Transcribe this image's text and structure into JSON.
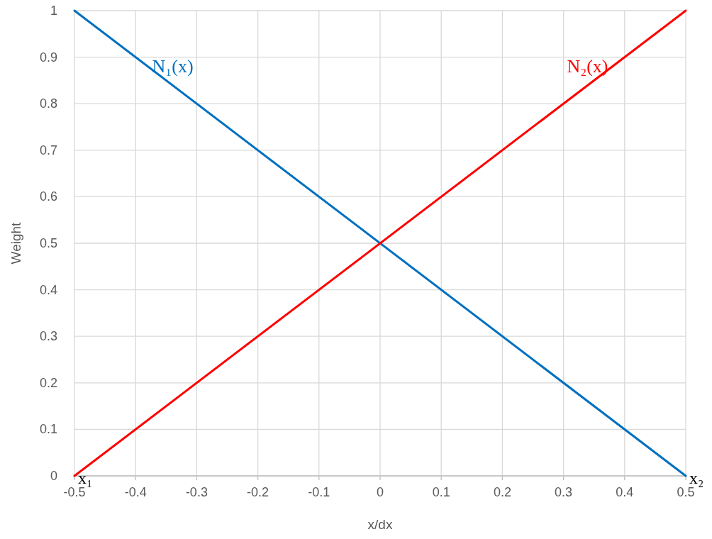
{
  "chart_data": {
    "type": "line",
    "xlabel": "x/dx",
    "ylabel": "Weight",
    "x": [
      -0.5,
      0.5
    ],
    "series": [
      {
        "name": "N₁(x)",
        "color": "#0070c0",
        "values": [
          1,
          0
        ]
      },
      {
        "name": "N₂(x)",
        "color": "#ff0000",
        "values": [
          0,
          1
        ]
      }
    ],
    "xlim": [
      -0.5,
      0.5
    ],
    "xticks": [
      -0.5,
      -0.4,
      -0.3,
      -0.2,
      -0.1,
      0,
      0.1,
      0.2,
      0.3,
      0.4,
      0.5
    ],
    "ylim": [
      0,
      1
    ],
    "yticks": [
      0,
      0.1,
      0.2,
      0.3,
      0.4,
      0.5,
      0.6,
      0.7,
      0.8,
      0.9,
      1
    ],
    "grid": true,
    "legend": false,
    "marker": "none",
    "line_style": "solid",
    "annotations": [
      {
        "text": "x₁",
        "x": -0.5,
        "y": 0
      },
      {
        "text": "x₂",
        "x": 0.5,
        "y": 0
      }
    ]
  }
}
